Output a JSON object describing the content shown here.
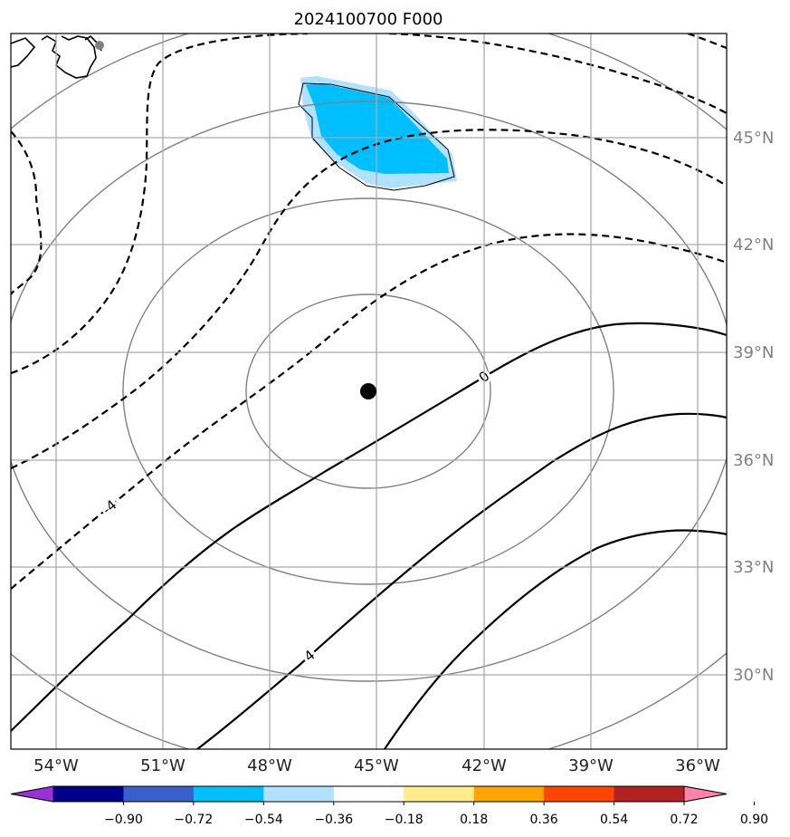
{
  "title": "2024100700 F000",
  "map": {
    "lon_range": [
      -55.5,
      -35.5
    ],
    "lat_range": [
      28,
      48
    ],
    "lon_ticks": [
      {
        "value": -54,
        "label": "54°W"
      },
      {
        "value": -51,
        "label": "51°W"
      },
      {
        "value": -48,
        "label": "48°W"
      },
      {
        "value": -45,
        "label": "45°W"
      },
      {
        "value": -42,
        "label": "42°W"
      },
      {
        "value": -39,
        "label": "39°W"
      },
      {
        "value": -36,
        "label": "36°W"
      }
    ],
    "lat_ticks": [
      {
        "value": 30,
        "label": "30°N"
      },
      {
        "value": 33,
        "label": "33°N"
      },
      {
        "value": 36,
        "label": "36°N"
      },
      {
        "value": 39,
        "label": "39°N"
      },
      {
        "value": 42,
        "label": "42°N"
      },
      {
        "value": 45,
        "label": "45°N"
      }
    ],
    "gridlines": true,
    "center_marker": {
      "lon": -45.3,
      "lat": 37.9,
      "color": "#000000"
    },
    "range_rings_color": "#808080",
    "contour_labels": [
      {
        "text": "0",
        "lon": -42,
        "lat": 38.3,
        "angle": -40
      },
      {
        "text": "-4",
        "lon": -52.4,
        "lat": 34.9,
        "angle": -40
      },
      {
        "text": "4",
        "lon": -46.5,
        "lat": 30.5,
        "angle": -40
      }
    ]
  },
  "colorbar": {
    "ticks": [
      "−0.90",
      "−0.72",
      "−0.54",
      "−0.36",
      "−0.18",
      "0.18",
      "0.36",
      "0.54",
      "0.72",
      "0.90"
    ],
    "colors": [
      "#9b30d9",
      "#00008b",
      "#3a5fcd",
      "#00bfff",
      "#b0e2ff",
      "#ffffff",
      "#ffec8b",
      "#ffa500",
      "#ff4500",
      "#b22222",
      "#ff82ab"
    ]
  }
}
